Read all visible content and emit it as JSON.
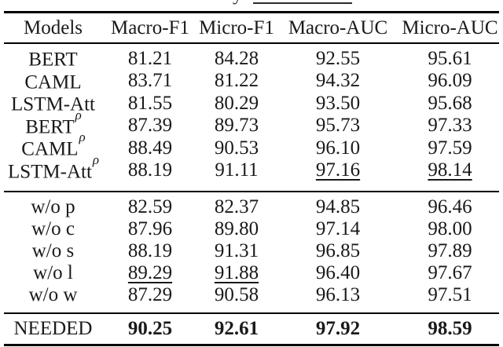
{
  "colors": {
    "background": "#ffffff",
    "text": "#1a1a1a",
    "rule": "#000000"
  },
  "caption_fragment": {
    "partial_char": "y"
  },
  "table": {
    "headers": [
      "Models",
      "Macro-F1",
      "Micro-F1",
      "Macro-AUC",
      "Micro-AUC"
    ],
    "groups": [
      {
        "rows": [
          {
            "model": "BERT",
            "values": [
              "81.21",
              "84.28",
              "92.55",
              "95.61"
            ]
          },
          {
            "model": "CAML",
            "values": [
              "83.71",
              "81.22",
              "94.32",
              "96.09"
            ]
          },
          {
            "model": "LSTM-Att",
            "values": [
              "81.55",
              "80.29",
              "93.50",
              "95.68"
            ]
          },
          {
            "model": "BERT",
            "sup": "ρ",
            "values": [
              "87.39",
              "89.73",
              "95.73",
              "97.33"
            ]
          },
          {
            "model": "CAML",
            "sup": "ρ",
            "values": [
              "88.49",
              "90.53",
              "96.10",
              "97.59"
            ]
          },
          {
            "model": "LSTM-Att",
            "sup": "ρ",
            "values": [
              "88.19",
              "91.11",
              "97.16",
              "98.14"
            ]
          }
        ]
      },
      {
        "rows": [
          {
            "model": "w/o p",
            "values": [
              "82.59",
              "82.37",
              "94.85",
              "96.46"
            ]
          },
          {
            "model": "w/o c",
            "values": [
              "87.96",
              "89.80",
              "97.14",
              "98.00"
            ]
          },
          {
            "model": "w/o s",
            "values": [
              "88.19",
              "91.31",
              "96.85",
              "97.89"
            ]
          },
          {
            "model": "w/o l",
            "values": [
              "89.29",
              "91.88",
              "96.40",
              "97.67"
            ]
          },
          {
            "model": "w/o w",
            "values": [
              "87.29",
              "90.58",
              "96.13",
              "97.51"
            ]
          }
        ]
      },
      {
        "rows": [
          {
            "model": "NEEDED",
            "values": [
              "90.25",
              "92.61",
              "97.92",
              "98.59"
            ]
          }
        ]
      }
    ]
  }
}
